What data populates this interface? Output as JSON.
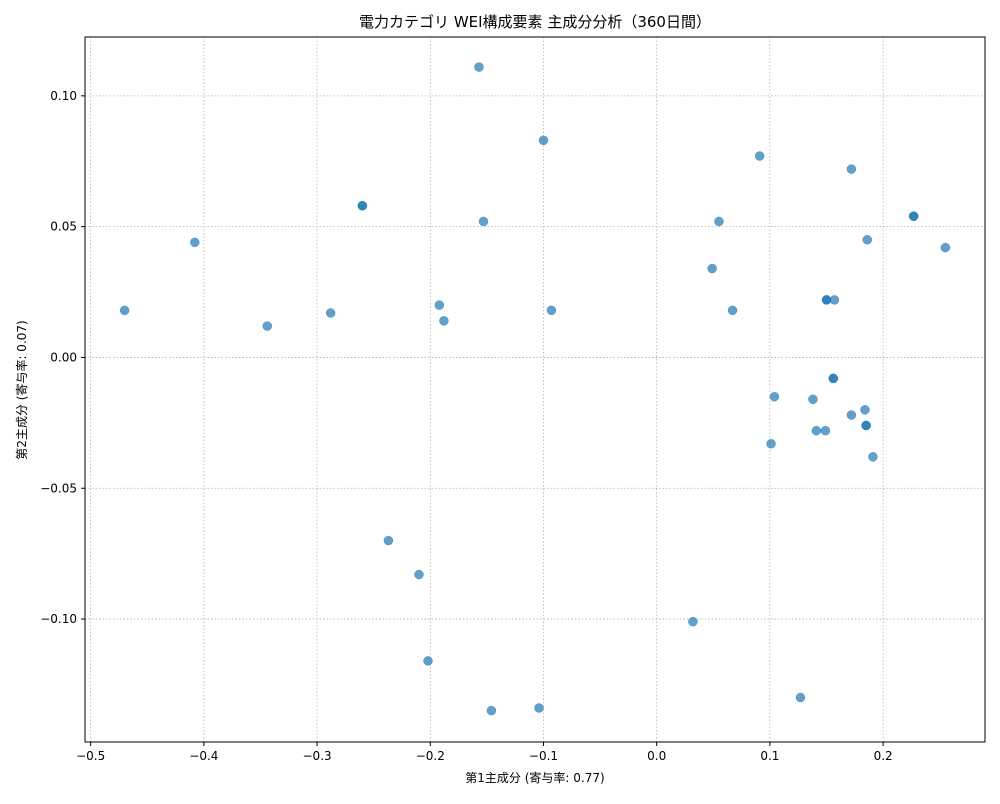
{
  "chart_data": {
    "type": "scatter",
    "title": "電力カテゴリ WEI構成要素 主成分分析（360日間）",
    "xlabel": "第1主成分 (寄与率: 0.77)",
    "ylabel": "第2主成分 (寄与率: 0.07)",
    "xlim": [
      -0.505,
      0.29
    ],
    "ylim": [
      -0.147,
      0.1225
    ],
    "xticks": [
      -0.5,
      -0.4,
      -0.3,
      -0.2,
      -0.1,
      0.0,
      0.1,
      0.2
    ],
    "xtick_labels": [
      "−0.5",
      "−0.4",
      "−0.3",
      "−0.2",
      "−0.1",
      "0.0",
      "0.1",
      "0.2"
    ],
    "yticks": [
      -0.1,
      -0.05,
      0.0,
      0.05,
      0.1
    ],
    "ytick_labels": [
      "−0.10",
      "−0.05",
      "0.00",
      "0.05",
      "0.10"
    ],
    "grid": true,
    "color": "#1f77b4",
    "series": [
      {
        "points": [
          [
            -0.47,
            0.018
          ],
          [
            -0.408,
            0.044
          ],
          [
            -0.344,
            0.012
          ],
          [
            -0.288,
            0.017
          ],
          [
            -0.26,
            0.058
          ],
          [
            -0.26,
            0.058
          ],
          [
            -0.237,
            -0.07
          ],
          [
            -0.21,
            -0.083
          ],
          [
            -0.202,
            -0.116
          ],
          [
            -0.192,
            0.02
          ],
          [
            -0.188,
            0.014
          ],
          [
            -0.157,
            0.111
          ],
          [
            -0.153,
            0.052
          ],
          [
            -0.146,
            -0.135
          ],
          [
            -0.104,
            -0.134
          ],
          [
            -0.1,
            0.083
          ],
          [
            -0.093,
            0.018
          ],
          [
            0.032,
            -0.101
          ],
          [
            0.049,
            0.034
          ],
          [
            0.055,
            0.052
          ],
          [
            0.067,
            0.018
          ],
          [
            0.091,
            0.077
          ],
          [
            0.101,
            -0.033
          ],
          [
            0.104,
            -0.015
          ],
          [
            0.127,
            -0.13
          ],
          [
            0.138,
            -0.016
          ],
          [
            0.141,
            -0.028
          ],
          [
            0.149,
            -0.028
          ],
          [
            0.15,
            0.022
          ],
          [
            0.15,
            0.022
          ],
          [
            0.156,
            -0.008
          ],
          [
            0.156,
            -0.008
          ],
          [
            0.157,
            0.022
          ],
          [
            0.172,
            -0.022
          ],
          [
            0.172,
            0.072
          ],
          [
            0.184,
            -0.02
          ],
          [
            0.185,
            -0.026
          ],
          [
            0.185,
            -0.026
          ],
          [
            0.186,
            0.045
          ],
          [
            0.191,
            -0.038
          ],
          [
            0.227,
            0.054
          ],
          [
            0.227,
            0.054
          ],
          [
            0.255,
            0.042
          ]
        ]
      }
    ]
  }
}
